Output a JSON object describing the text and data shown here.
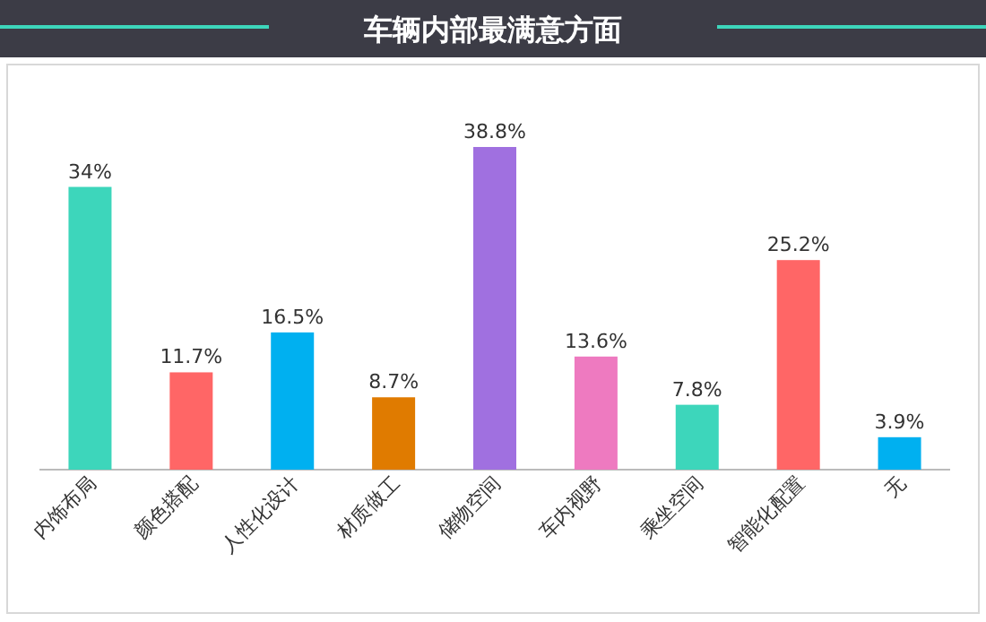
{
  "chart_data": {
    "type": "bar",
    "title": "车辆内部最满意方面",
    "categories": [
      "内饰布局",
      "颜色搭配",
      "人性化设计",
      "材质做工",
      "储物空间",
      "车内视野",
      "乘坐空间",
      "智能化配置",
      "无"
    ],
    "values": [
      34,
      11.7,
      16.5,
      8.7,
      38.8,
      13.6,
      7.8,
      25.2,
      3.9
    ],
    "value_labels": [
      "34%",
      "11.7%",
      "16.5%",
      "8.7%",
      "38.8%",
      "13.6%",
      "7.8%",
      "25.2%",
      "3.9%"
    ],
    "colors": [
      "#3dd6bb",
      "#ff6666",
      "#00b0f0",
      "#e07b00",
      "#a070e0",
      "#ee7ac0",
      "#3dd6bb",
      "#ff6666",
      "#00b0f0"
    ]
  }
}
